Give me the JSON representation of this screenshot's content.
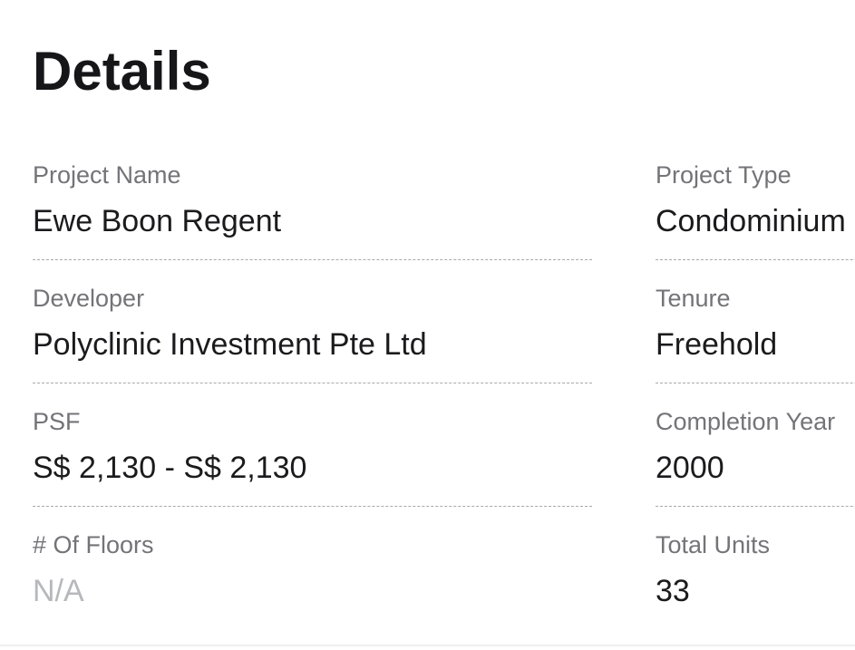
{
  "section": {
    "title": "Details"
  },
  "colors": {
    "title_text": "#161619",
    "label_text": "#747478",
    "value_text": "#1b1b1d",
    "muted_value_text": "#b6b8bc",
    "dashed_divider": "#a9a9a9",
    "bottom_divider": "#efefef",
    "background": "#ffffff"
  },
  "details": {
    "left": [
      {
        "label": "Project Name",
        "value": "Ewe Boon Regent"
      },
      {
        "label": "Developer",
        "value": "Polyclinic Investment Pte Ltd"
      },
      {
        "label": "PSF",
        "value": "S$ 2,130 - S$ 2,130"
      },
      {
        "label": "# Of Floors",
        "value": "N/A"
      }
    ],
    "right": [
      {
        "label": "Project Type",
        "value": "Condominium"
      },
      {
        "label": "Tenure",
        "value": "Freehold"
      },
      {
        "label": "Completion Year",
        "value": "2000"
      },
      {
        "label": "Total Units",
        "value": "33"
      }
    ]
  }
}
